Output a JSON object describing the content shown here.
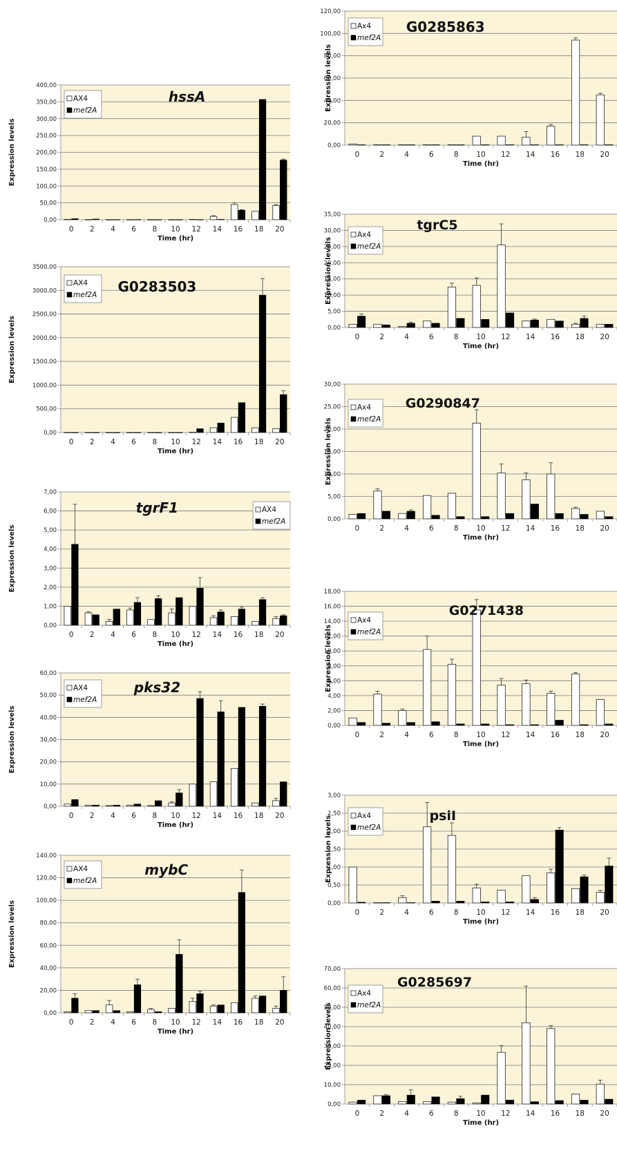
{
  "colors": {
    "plot_background": "#fbf4d9",
    "ax4_bar": "#ffffff",
    "mef2a_bar": "#000000"
  },
  "chart_data": [
    {
      "type": "bar",
      "title": "hssA",
      "title_italic": true,
      "xlabel": "Time (hr)",
      "ylabel": "Expression levels",
      "categories": [
        "0",
        "2",
        "4",
        "6",
        "8",
        "10",
        "12",
        "14",
        "16",
        "18",
        "20"
      ],
      "ylim": [
        0,
        400
      ],
      "yticks": [
        "0,00",
        "50,00",
        "100,00",
        "150,00",
        "200,00",
        "250,00",
        "300,00",
        "350,00",
        "400,00"
      ],
      "series": [
        {
          "name": "AX4",
          "italic": false,
          "values": [
            1,
            0.5,
            0.3,
            0.3,
            0.3,
            0.3,
            1,
            10,
            45,
            25,
            42
          ],
          "errors": [
            0,
            0,
            0,
            0,
            0,
            0,
            0,
            2,
            5,
            0,
            3
          ]
        },
        {
          "name": "mef2A",
          "italic": true,
          "values": [
            3,
            2,
            0.5,
            0.5,
            0.3,
            0.3,
            0.3,
            1,
            28,
            357,
            177
          ],
          "errors": [
            0,
            0,
            0,
            0,
            0,
            0,
            0,
            0,
            2,
            0,
            3
          ]
        }
      ],
      "legend": "top-left",
      "grid": true
    },
    {
      "type": "bar",
      "title": "G0283503",
      "title_italic": false,
      "xlabel": "Time (hr)",
      "ylabel": "Expression levels",
      "categories": [
        "0",
        "2",
        "4",
        "6",
        "8",
        "10",
        "12",
        "14",
        "16",
        "18",
        "20"
      ],
      "ylim": [
        0,
        3500
      ],
      "yticks": [
        "0,00",
        "500,00",
        "1000,00",
        "1500,00",
        "2000,00",
        "2500,00",
        "3000,00",
        "3500,00"
      ],
      "series": [
        {
          "name": "AX4",
          "italic": false,
          "values": [
            2,
            1,
            1,
            1,
            1,
            1,
            5,
            100,
            320,
            100,
            80
          ],
          "errors": [
            0,
            0,
            0,
            0,
            0,
            0,
            0,
            0,
            0,
            0,
            0
          ]
        },
        {
          "name": "mef2A",
          "italic": true,
          "values": [
            1,
            1,
            1,
            1,
            1,
            1,
            80,
            200,
            630,
            2900,
            800
          ],
          "errors": [
            0,
            0,
            0,
            0,
            0,
            0,
            0,
            0,
            0,
            350,
            80
          ]
        }
      ],
      "legend": "top-left",
      "grid": true
    },
    {
      "type": "bar",
      "title": "tgrF1",
      "title_italic": true,
      "xlabel": "Time (hr)",
      "ylabel": "Expression levels",
      "categories": [
        "0",
        "2",
        "4",
        "6",
        "8",
        "10",
        "12",
        "14",
        "16",
        "18",
        "20"
      ],
      "ylim": [
        0,
        7
      ],
      "yticks": [
        "0,00",
        "1,00",
        "2,00",
        "3,00",
        "4,00",
        "5,00",
        "6,00",
        "7,00"
      ],
      "series": [
        {
          "name": "AX4",
          "italic": false,
          "values": [
            1,
            0.65,
            0.2,
            0.8,
            0.3,
            0.65,
            1,
            0.4,
            0.45,
            0.2,
            0.35
          ],
          "errors": [
            0,
            0.05,
            0.1,
            0.1,
            0,
            0.2,
            0,
            0.1,
            0,
            0,
            0.1
          ]
        },
        {
          "name": "mef2A",
          "italic": true,
          "values": [
            4.25,
            0.55,
            0.85,
            1.2,
            1.4,
            1.45,
            1.95,
            0.7,
            0.85,
            1.35,
            0.5
          ],
          "errors": [
            2.1,
            0,
            0,
            0.25,
            0.15,
            0,
            0.55,
            0.1,
            0.1,
            0.1,
            0.05
          ]
        }
      ],
      "legend": "top-right",
      "grid": true
    },
    {
      "type": "bar",
      "title": "pks32",
      "title_italic": true,
      "xlabel": "Time (hr)",
      "ylabel": "Expression levels",
      "categories": [
        "0",
        "2",
        "4",
        "6",
        "8",
        "10",
        "12",
        "14",
        "16",
        "18",
        "20"
      ],
      "ylim": [
        0,
        60
      ],
      "yticks": [
        "0,00",
        "10,00",
        "20,00",
        "30,00",
        "40,00",
        "50,00",
        "60,00"
      ],
      "series": [
        {
          "name": "AX4",
          "italic": false,
          "values": [
            1,
            0.5,
            0.3,
            0.5,
            0.3,
            1.5,
            10,
            11,
            17,
            1.5,
            2.5
          ],
          "errors": [
            0,
            0,
            0,
            0,
            0,
            0.5,
            0,
            0,
            0,
            0,
            1
          ]
        },
        {
          "name": "mef2A",
          "italic": true,
          "values": [
            3,
            0.5,
            0.5,
            1,
            2.5,
            6,
            48.5,
            42.5,
            44.5,
            45,
            11
          ],
          "errors": [
            0,
            0,
            0,
            0,
            0,
            1.5,
            3,
            5,
            0,
            1,
            0
          ]
        }
      ],
      "legend": "top-left",
      "grid": true
    },
    {
      "type": "bar",
      "title": "mybC",
      "title_italic": true,
      "xlabel": "Time (hr)",
      "ylabel": "Expression levels",
      "categories": [
        "0",
        "2",
        "4",
        "6",
        "8",
        "10",
        "12",
        "14",
        "16",
        "18",
        "20"
      ],
      "ylim": [
        0,
        140
      ],
      "yticks": [
        "0,00",
        "20,00",
        "40,00",
        "60,00",
        "80,00",
        "100,00",
        "120,00",
        "140,00"
      ],
      "series": [
        {
          "name": "AX4",
          "italic": false,
          "values": [
            1,
            2,
            7,
            1,
            3,
            4,
            10,
            6,
            9,
            13,
            4
          ],
          "errors": [
            0,
            0,
            4,
            0,
            1,
            0,
            3,
            1,
            0,
            2,
            2
          ]
        },
        {
          "name": "mef2A",
          "italic": true,
          "values": [
            13,
            2,
            2,
            25,
            1,
            52,
            17,
            7,
            107,
            15,
            20
          ],
          "errors": [
            4,
            0,
            0,
            5,
            0,
            13,
            2,
            0,
            20,
            0,
            12
          ]
        }
      ],
      "legend": "top-left",
      "grid": true
    },
    {
      "type": "bar",
      "title": "G0285863",
      "title_italic": false,
      "xlabel": "Time (hr)",
      "ylabel": "Expression levels",
      "categories": [
        "0",
        "2",
        "4",
        "6",
        "8",
        "10",
        "12",
        "14",
        "16",
        "18",
        "20"
      ],
      "ylim": [
        0,
        120
      ],
      "yticks": [
        "0,00",
        "20,00",
        "40,00",
        "60,00",
        "80,00",
        "100,00",
        "120,00"
      ],
      "series": [
        {
          "name": "Ax4",
          "italic": false,
          "values": [
            1,
            0.3,
            0.3,
            0.3,
            0.3,
            8,
            8,
            7,
            17,
            94,
            45
          ],
          "errors": [
            0,
            0,
            0,
            0,
            0,
            0,
            0,
            5,
            1.5,
            2,
            1.5
          ]
        },
        {
          "name": "mef2A",
          "italic": true,
          "values": [
            0.3,
            0.3,
            0.3,
            0.3,
            0.3,
            0.3,
            0.3,
            0.3,
            0.3,
            0.3,
            0.3
          ],
          "errors": [
            0,
            0,
            0,
            0,
            0,
            0,
            0,
            0,
            0,
            0,
            0
          ]
        }
      ],
      "legend": "top-left",
      "grid": true
    },
    {
      "type": "bar",
      "title": "tgrC5",
      "title_italic": false,
      "xlabel": "Time (hr)",
      "ylabel": "Expression levels",
      "categories": [
        "0",
        "2",
        "4",
        "6",
        "8",
        "10",
        "12",
        "14",
        "16",
        "18",
        "20"
      ],
      "ylim": [
        0,
        35
      ],
      "yticks": [
        "0,00",
        "5,00",
        "10,00",
        "15,00",
        "20,00",
        "25,00",
        "30,00",
        "35,00"
      ],
      "series": [
        {
          "name": "Ax4",
          "italic": false,
          "values": [
            1,
            1,
            0.3,
            2,
            12.5,
            13,
            25.5,
            2,
            2.5,
            1,
            1
          ],
          "errors": [
            0,
            0,
            0,
            0,
            1.2,
            2.3,
            6.5,
            0,
            0,
            0.3,
            0
          ]
        },
        {
          "name": "mef2A",
          "italic": true,
          "values": [
            3.5,
            0.8,
            1.3,
            1.3,
            2.8,
            2.5,
            4.5,
            2.3,
            2,
            2.8,
            1
          ],
          "errors": [
            0.7,
            0,
            0.3,
            0,
            0,
            0,
            0,
            0.3,
            0,
            0.7,
            0
          ]
        }
      ],
      "legend": "top-left",
      "grid": true
    },
    {
      "type": "bar",
      "title": "G0290847",
      "title_italic": false,
      "xlabel": "Time (hr)",
      "ylabel": "Expression levels",
      "categories": [
        "0",
        "2",
        "4",
        "6",
        "8",
        "10",
        "12",
        "14",
        "16",
        "18",
        "20"
      ],
      "ylim": [
        0,
        30
      ],
      "yticks": [
        "0,00",
        "5,00",
        "10,00",
        "15,00",
        "20,00",
        "25,00",
        "30,00"
      ],
      "series": [
        {
          "name": "Ax4",
          "italic": false,
          "values": [
            1,
            6.2,
            1.2,
            5.2,
            5.7,
            21.3,
            10.2,
            8.7,
            10,
            2.3,
            1.7
          ],
          "errors": [
            0,
            0.5,
            0,
            0,
            0,
            3,
            2,
            1.5,
            2.5,
            0.3,
            0
          ]
        },
        {
          "name": "mef2A",
          "italic": true,
          "values": [
            1.2,
            1.7,
            1.7,
            0.8,
            0.5,
            0.5,
            1.2,
            3.3,
            1.2,
            1,
            0.5
          ],
          "errors": [
            0,
            0,
            0.3,
            0,
            0,
            0,
            0,
            0,
            0,
            0,
            0
          ]
        }
      ],
      "legend": "top-left",
      "grid": true
    },
    {
      "type": "bar",
      "title": "G0271438",
      "title_italic": false,
      "xlabel": "Time (hr)",
      "ylabel": "Expression levels",
      "categories": [
        "0",
        "2",
        "4",
        "6",
        "8",
        "10",
        "12",
        "14",
        "16",
        "18",
        "20"
      ],
      "ylim": [
        0,
        18
      ],
      "yticks": [
        "0,00",
        "2,00",
        "4,00",
        "6,00",
        "8,00",
        "10,00",
        "12,00",
        "14,00",
        "16,00",
        "18,00"
      ],
      "series": [
        {
          "name": "Ax4",
          "italic": false,
          "values": [
            1,
            4.2,
            2,
            10.2,
            8.2,
            15.5,
            5.4,
            5.6,
            4.3,
            6.9,
            3.5
          ],
          "errors": [
            0,
            0.4,
            0.2,
            1.8,
            0.7,
            1.4,
            0.9,
            0.5,
            0.3,
            0.2,
            0
          ]
        },
        {
          "name": "mef2A",
          "italic": true,
          "values": [
            0.4,
            0.3,
            0.4,
            0.5,
            0.2,
            0.2,
            0.1,
            0.1,
            0.7,
            0.1,
            0.2
          ],
          "errors": [
            0,
            0,
            0,
            0,
            0,
            0,
            0,
            0,
            0,
            0,
            0
          ]
        }
      ],
      "legend": "top-left",
      "grid": true
    },
    {
      "type": "bar",
      "title": "psiI",
      "title_italic": false,
      "xlabel": "Time (hr)",
      "ylabel": "Expression levels",
      "categories": [
        "0",
        "2",
        "4",
        "6",
        "8",
        "10",
        "12",
        "14",
        "16",
        "18",
        "20"
      ],
      "ylim": [
        0,
        3
      ],
      "yticks": [
        "0,00",
        "0,50",
        "1,00",
        "1,50",
        "2,00",
        "2,50",
        "3,00"
      ],
      "series": [
        {
          "name": "Ax4",
          "italic": false,
          "values": [
            1,
            0.01,
            0.15,
            2.12,
            1.88,
            0.42,
            0.36,
            0.76,
            0.84,
            0.4,
            0.3
          ],
          "errors": [
            0,
            0,
            0.05,
            0.68,
            0.35,
            0.1,
            0,
            0,
            0.1,
            0,
            0.05
          ]
        },
        {
          "name": "mef2A",
          "italic": true,
          "values": [
            0.02,
            0.01,
            0.01,
            0.05,
            0.05,
            0.03,
            0.03,
            0.1,
            2.03,
            0.73,
            1.03
          ],
          "errors": [
            0,
            0,
            0,
            0,
            0,
            0,
            0,
            0.05,
            0.07,
            0.05,
            0.22
          ]
        }
      ],
      "legend": "top-left",
      "grid": true
    },
    {
      "type": "bar",
      "title": "G0285697",
      "title_italic": false,
      "xlabel": "Time (hr)",
      "ylabel": "Expression levels",
      "categories": [
        "0",
        "2",
        "4",
        "6",
        "8",
        "10",
        "12",
        "14",
        "16",
        "18",
        "20"
      ],
      "ylim": [
        0,
        70
      ],
      "yticks": [
        "0,00",
        "10,00",
        "20,00",
        "30,00",
        "40,00",
        "50,00",
        "60,00",
        "70,00"
      ],
      "series": [
        {
          "name": "Ax4",
          "italic": false,
          "values": [
            1,
            4.3,
            1.3,
            1.2,
            1,
            0.5,
            26.7,
            42,
            39,
            5.2,
            10.3
          ],
          "errors": [
            0,
            0,
            0,
            0,
            0,
            0,
            3.5,
            19,
            1.5,
            0,
            2
          ]
        },
        {
          "name": "mef2A",
          "italic": true,
          "values": [
            2,
            4.3,
            4.6,
            3.7,
            2.8,
            4.6,
            2,
            1.2,
            1.8,
            2,
            2.5
          ],
          "errors": [
            0,
            0.5,
            2.8,
            0,
            1.2,
            0,
            0,
            0,
            0,
            0,
            0
          ]
        }
      ],
      "legend": "top-left",
      "grid": true
    }
  ]
}
